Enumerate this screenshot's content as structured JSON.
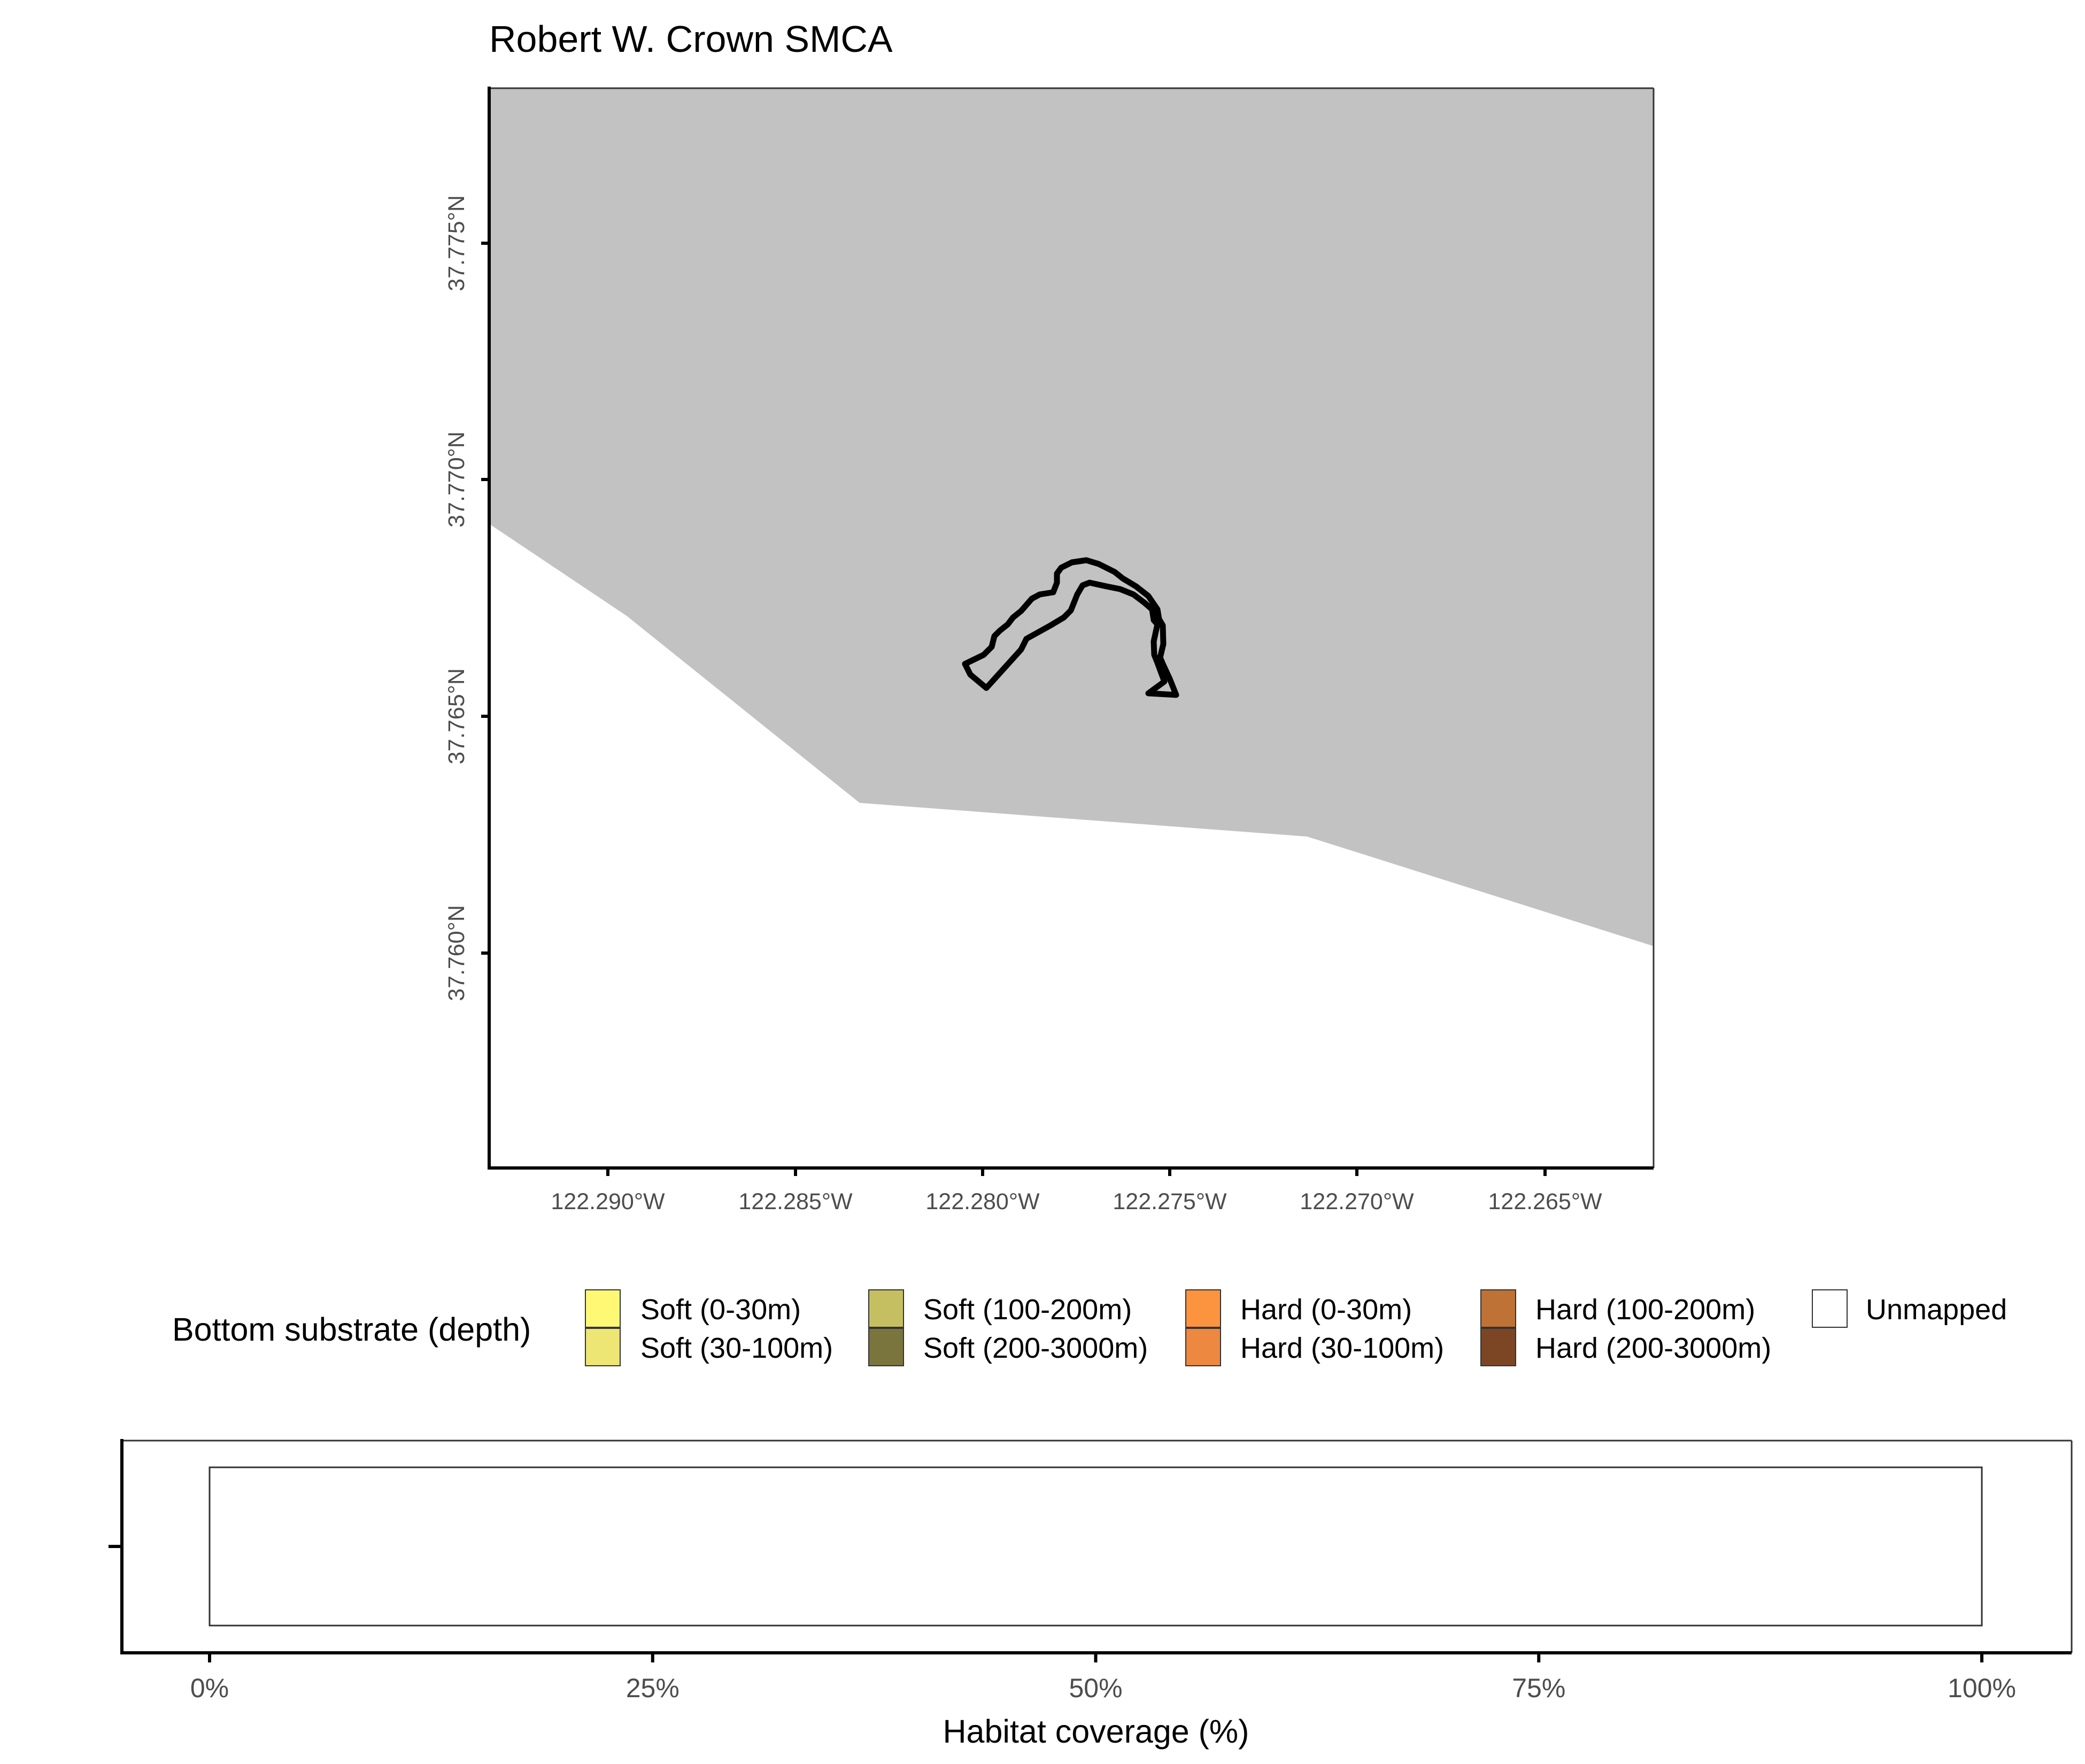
{
  "title": "Robert W. Crown SMCA",
  "map": {
    "land_color": "#c2c2c2",
    "water_color": "#ffffff",
    "mpa_outline_color": "#000000",
    "x_tick_labels": [
      "122.290°W",
      "122.285°W",
      "122.280°W",
      "122.275°W",
      "122.270°W",
      "122.265°W"
    ],
    "y_tick_labels": [
      "37.775°N",
      "37.770°N",
      "37.765°N",
      "37.760°N"
    ]
  },
  "legend": {
    "title": "Bottom substrate (depth)",
    "items": [
      {
        "label": "Soft (0-30m)",
        "color": "#fff875"
      },
      {
        "label": "Soft (30-100m)",
        "color": "#ede574"
      },
      {
        "label": "Soft (100-200m)",
        "color": "#c5bf61"
      },
      {
        "label": "Soft (200-3000m)",
        "color": "#7a743d"
      },
      {
        "label": "Hard (0-30m)",
        "color": "#fc943f"
      },
      {
        "label": "Hard (30-100m)",
        "color": "#ec8840"
      },
      {
        "label": "Hard (100-200m)",
        "color": "#be7236"
      },
      {
        "label": "Hard (200-3000m)",
        "color": "#7c4625"
      },
      {
        "label": "Unmapped",
        "color": "#ffffff"
      }
    ]
  },
  "chart_data": {
    "type": "bar",
    "orientation": "horizontal",
    "categories": [
      ""
    ],
    "series": [
      {
        "name": "Unmapped",
        "values": [
          100
        ]
      }
    ],
    "xlabel": "Habitat coverage (%)",
    "ylabel": "",
    "xlim": [
      0,
      100
    ],
    "x_tick_labels": [
      "0%",
      "25%",
      "50%",
      "75%",
      "100%"
    ],
    "grid": false,
    "legend": "top"
  }
}
